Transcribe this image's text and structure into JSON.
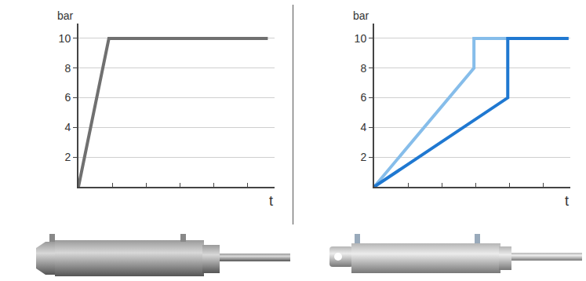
{
  "chart_data": [
    {
      "type": "line",
      "xlabel": "t",
      "ylabel": "bar",
      "xlim": [
        0,
        5.8
      ],
      "xticks": [
        0,
        1,
        2,
        3,
        4,
        5
      ],
      "ylim": [
        0,
        11
      ],
      "yticks": [
        2,
        4,
        6,
        8,
        10
      ],
      "grid": true,
      "tick_labels": "y",
      "series": [
        {
          "color": "#707070",
          "x": [
            0,
            0.9,
            5.6
          ],
          "values": [
            0,
            10,
            10
          ]
        }
      ]
    },
    {
      "type": "line",
      "xlabel": "t",
      "ylabel": "bar",
      "xlim": [
        0,
        5.8
      ],
      "xticks": [
        0,
        1,
        2,
        3,
        4,
        5
      ],
      "ylim": [
        0,
        11
      ],
      "yticks": [
        2,
        4,
        6,
        8,
        10
      ],
      "grid": true,
      "tick_labels": "y",
      "series": [
        {
          "color": "#86bdea",
          "x": [
            0,
            2.95,
            2.95,
            3.95
          ],
          "values": [
            0,
            8,
            10,
            10
          ]
        },
        {
          "color": "#1f78d1",
          "x": [
            0,
            3.95,
            3.95,
            5.75
          ],
          "values": [
            0,
            6,
            10,
            10
          ]
        }
      ]
    }
  ]
}
